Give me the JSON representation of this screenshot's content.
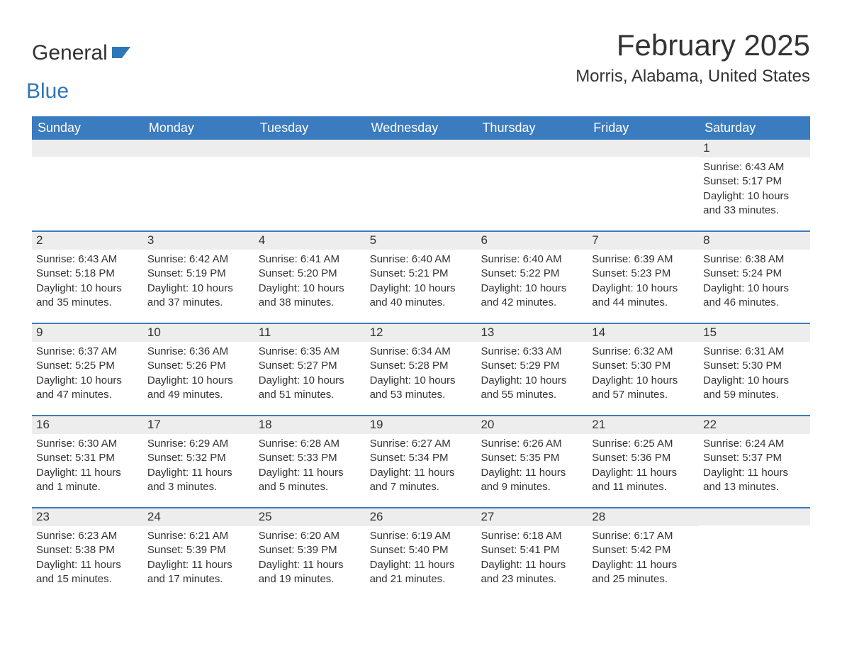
{
  "logo": {
    "word1": "General",
    "word2": "Blue",
    "accent_color": "#2f76b8"
  },
  "title": "February 2025",
  "location": "Morris, Alabama, United States",
  "colors": {
    "header_bg": "#3b7bbf",
    "header_text": "#ffffff",
    "daynum_bg": "#ededed",
    "week_border": "#3b7bbf",
    "text": "#333333",
    "background": "#ffffff"
  },
  "day_headers": [
    "Sunday",
    "Monday",
    "Tuesday",
    "Wednesday",
    "Thursday",
    "Friday",
    "Saturday"
  ],
  "weeks": [
    [
      {
        "day": "",
        "sunrise": "",
        "sunset": "",
        "daylight": ""
      },
      {
        "day": "",
        "sunrise": "",
        "sunset": "",
        "daylight": ""
      },
      {
        "day": "",
        "sunrise": "",
        "sunset": "",
        "daylight": ""
      },
      {
        "day": "",
        "sunrise": "",
        "sunset": "",
        "daylight": ""
      },
      {
        "day": "",
        "sunrise": "",
        "sunset": "",
        "daylight": ""
      },
      {
        "day": "",
        "sunrise": "",
        "sunset": "",
        "daylight": ""
      },
      {
        "day": "1",
        "sunrise": "Sunrise: 6:43 AM",
        "sunset": "Sunset: 5:17 PM",
        "daylight": "Daylight: 10 hours and 33 minutes."
      }
    ],
    [
      {
        "day": "2",
        "sunrise": "Sunrise: 6:43 AM",
        "sunset": "Sunset: 5:18 PM",
        "daylight": "Daylight: 10 hours and 35 minutes."
      },
      {
        "day": "3",
        "sunrise": "Sunrise: 6:42 AM",
        "sunset": "Sunset: 5:19 PM",
        "daylight": "Daylight: 10 hours and 37 minutes."
      },
      {
        "day": "4",
        "sunrise": "Sunrise: 6:41 AM",
        "sunset": "Sunset: 5:20 PM",
        "daylight": "Daylight: 10 hours and 38 minutes."
      },
      {
        "day": "5",
        "sunrise": "Sunrise: 6:40 AM",
        "sunset": "Sunset: 5:21 PM",
        "daylight": "Daylight: 10 hours and 40 minutes."
      },
      {
        "day": "6",
        "sunrise": "Sunrise: 6:40 AM",
        "sunset": "Sunset: 5:22 PM",
        "daylight": "Daylight: 10 hours and 42 minutes."
      },
      {
        "day": "7",
        "sunrise": "Sunrise: 6:39 AM",
        "sunset": "Sunset: 5:23 PM",
        "daylight": "Daylight: 10 hours and 44 minutes."
      },
      {
        "day": "8",
        "sunrise": "Sunrise: 6:38 AM",
        "sunset": "Sunset: 5:24 PM",
        "daylight": "Daylight: 10 hours and 46 minutes."
      }
    ],
    [
      {
        "day": "9",
        "sunrise": "Sunrise: 6:37 AM",
        "sunset": "Sunset: 5:25 PM",
        "daylight": "Daylight: 10 hours and 47 minutes."
      },
      {
        "day": "10",
        "sunrise": "Sunrise: 6:36 AM",
        "sunset": "Sunset: 5:26 PM",
        "daylight": "Daylight: 10 hours and 49 minutes."
      },
      {
        "day": "11",
        "sunrise": "Sunrise: 6:35 AM",
        "sunset": "Sunset: 5:27 PM",
        "daylight": "Daylight: 10 hours and 51 minutes."
      },
      {
        "day": "12",
        "sunrise": "Sunrise: 6:34 AM",
        "sunset": "Sunset: 5:28 PM",
        "daylight": "Daylight: 10 hours and 53 minutes."
      },
      {
        "day": "13",
        "sunrise": "Sunrise: 6:33 AM",
        "sunset": "Sunset: 5:29 PM",
        "daylight": "Daylight: 10 hours and 55 minutes."
      },
      {
        "day": "14",
        "sunrise": "Sunrise: 6:32 AM",
        "sunset": "Sunset: 5:30 PM",
        "daylight": "Daylight: 10 hours and 57 minutes."
      },
      {
        "day": "15",
        "sunrise": "Sunrise: 6:31 AM",
        "sunset": "Sunset: 5:30 PM",
        "daylight": "Daylight: 10 hours and 59 minutes."
      }
    ],
    [
      {
        "day": "16",
        "sunrise": "Sunrise: 6:30 AM",
        "sunset": "Sunset: 5:31 PM",
        "daylight": "Daylight: 11 hours and 1 minute."
      },
      {
        "day": "17",
        "sunrise": "Sunrise: 6:29 AM",
        "sunset": "Sunset: 5:32 PM",
        "daylight": "Daylight: 11 hours and 3 minutes."
      },
      {
        "day": "18",
        "sunrise": "Sunrise: 6:28 AM",
        "sunset": "Sunset: 5:33 PM",
        "daylight": "Daylight: 11 hours and 5 minutes."
      },
      {
        "day": "19",
        "sunrise": "Sunrise: 6:27 AM",
        "sunset": "Sunset: 5:34 PM",
        "daylight": "Daylight: 11 hours and 7 minutes."
      },
      {
        "day": "20",
        "sunrise": "Sunrise: 6:26 AM",
        "sunset": "Sunset: 5:35 PM",
        "daylight": "Daylight: 11 hours and 9 minutes."
      },
      {
        "day": "21",
        "sunrise": "Sunrise: 6:25 AM",
        "sunset": "Sunset: 5:36 PM",
        "daylight": "Daylight: 11 hours and 11 minutes."
      },
      {
        "day": "22",
        "sunrise": "Sunrise: 6:24 AM",
        "sunset": "Sunset: 5:37 PM",
        "daylight": "Daylight: 11 hours and 13 minutes."
      }
    ],
    [
      {
        "day": "23",
        "sunrise": "Sunrise: 6:23 AM",
        "sunset": "Sunset: 5:38 PM",
        "daylight": "Daylight: 11 hours and 15 minutes."
      },
      {
        "day": "24",
        "sunrise": "Sunrise: 6:21 AM",
        "sunset": "Sunset: 5:39 PM",
        "daylight": "Daylight: 11 hours and 17 minutes."
      },
      {
        "day": "25",
        "sunrise": "Sunrise: 6:20 AM",
        "sunset": "Sunset: 5:39 PM",
        "daylight": "Daylight: 11 hours and 19 minutes."
      },
      {
        "day": "26",
        "sunrise": "Sunrise: 6:19 AM",
        "sunset": "Sunset: 5:40 PM",
        "daylight": "Daylight: 11 hours and 21 minutes."
      },
      {
        "day": "27",
        "sunrise": "Sunrise: 6:18 AM",
        "sunset": "Sunset: 5:41 PM",
        "daylight": "Daylight: 11 hours and 23 minutes."
      },
      {
        "day": "28",
        "sunrise": "Sunrise: 6:17 AM",
        "sunset": "Sunset: 5:42 PM",
        "daylight": "Daylight: 11 hours and 25 minutes."
      },
      {
        "day": "",
        "sunrise": "",
        "sunset": "",
        "daylight": ""
      }
    ]
  ]
}
